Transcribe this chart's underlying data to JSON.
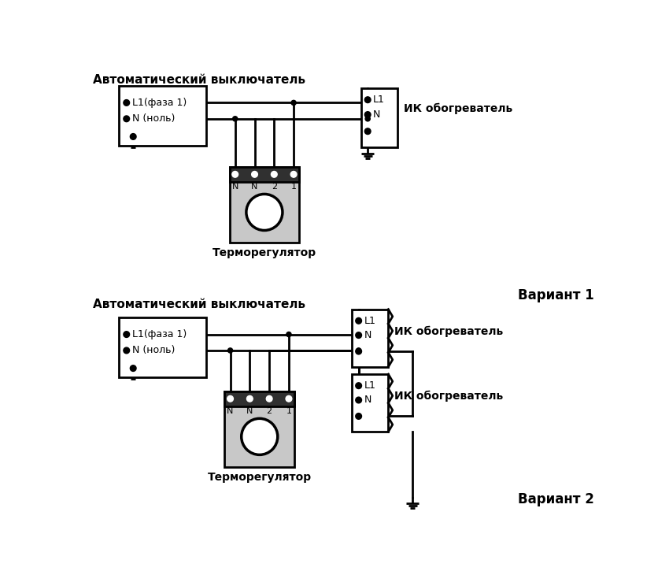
{
  "bg_color": "#ffffff",
  "line_color": "#000000",
  "title1": "Автоматический выключатель",
  "title2": "Автоматический выключатель",
  "label_thermostat": "Терморегулятор",
  "label_ik": "ИК обогреватель",
  "label_variant1": "Вариант 1",
  "label_variant2": "Вариант 2",
  "label_l1_faza": "L1(фаза 1)",
  "label_n_nol": "N (ноль)",
  "label_L1": "L1",
  "label_N": "N",
  "terminal_labels": [
    "N",
    "N",
    "2",
    "1"
  ],
  "gray_color": "#c8c8c8",
  "dark_gray": "#303030"
}
